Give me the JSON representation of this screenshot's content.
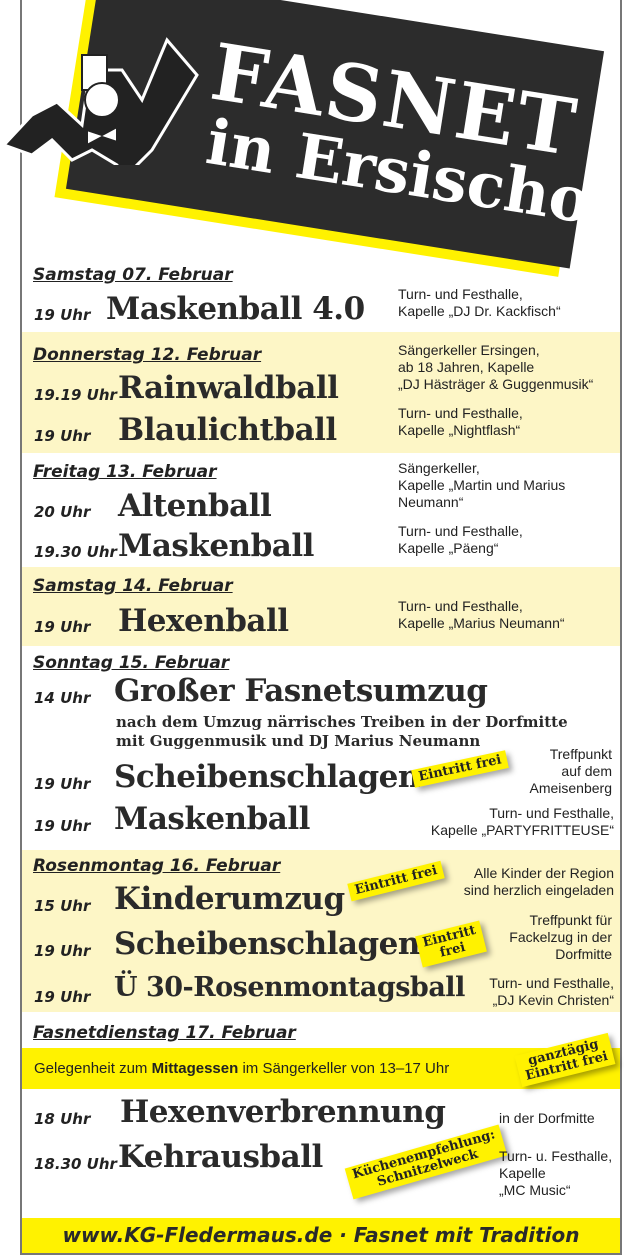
{
  "header": {
    "title_line1": "FASNET",
    "title_line2": "in Ersischo",
    "logo": "bat-mascot-logo"
  },
  "sections": [
    {
      "day": "Samstag 07. Februar",
      "events": [
        {
          "time": "19 Uhr",
          "name": "Maskenball 4.0",
          "info": "Turn- und Festhalle,\nKapelle „DJ Dr. Kackfisch“"
        }
      ]
    },
    {
      "day": "Donnerstag 12. Februar",
      "events": [
        {
          "time": "19.19 Uhr",
          "name": "Rainwaldball",
          "info": "Sängerkeller Ersingen,\nab 18 Jahren, Kapelle\n„DJ Hästräger & Guggenmusik“"
        },
        {
          "time": "19 Uhr",
          "name": "Blaulichtball",
          "info": "Turn- und Festhalle,\nKapelle „Nightflash“"
        }
      ]
    },
    {
      "day": "Freitag 13. Februar",
      "events": [
        {
          "time": "20 Uhr",
          "name": "Altenball",
          "info": "Sängerkeller,\nKapelle „Martin und Marius\nNeumann“"
        },
        {
          "time": "19.30 Uhr",
          "name": "Maskenball",
          "info": "Turn- und Festhalle,\nKapelle „Päeng“"
        }
      ]
    },
    {
      "day": "Samstag 14. Februar",
      "events": [
        {
          "time": "19 Uhr",
          "name": "Hexenball",
          "info": "Turn- und Festhalle,\nKapelle „Marius Neumann“"
        }
      ]
    },
    {
      "day": "Sonntag 15. Februar",
      "events": [
        {
          "time": "14 Uhr",
          "name": "Großer Fasnetsumzug",
          "sub": "nach dem Umzug närrisches Treiben in der Dorfmitte\nmit Guggenmusik und DJ Marius Neumann"
        },
        {
          "time": "19 Uhr",
          "name": "Scheibenschlagen",
          "stamp": "Eintritt frei",
          "info": "Treffpunkt\nauf dem\nAmeisenberg"
        },
        {
          "time": "19 Uhr",
          "name": "Maskenball",
          "info": "Turn- und Festhalle,\nKapelle „PARTYFRITTEUSE“"
        }
      ]
    },
    {
      "day": "Rosenmontag 16. Februar",
      "events": [
        {
          "time": "15 Uhr",
          "name": "Kinderumzug",
          "stamp": "Eintritt frei",
          "info": "Alle Kinder der Region\nsind herzlich eingeladen"
        },
        {
          "time": "19 Uhr",
          "name": "Scheibenschlagen",
          "stamp": "Eintritt\nfrei",
          "info": "Treffpunkt für\nFackelzug in der\nDorfmitte"
        },
        {
          "time": "19 Uhr",
          "name": "Ü 30-Rosenmontagsball",
          "info": "Turn- und Festhalle,\n„DJ Kevin Christen“"
        }
      ]
    },
    {
      "day": "Fasnetdienstag 17. Februar",
      "lunch": {
        "pre": "Gelegenheit zum ",
        "bold": "Mittagessen",
        "post": " im Sängerkeller von 13–17 Uhr",
        "stamp": "ganztägig\nEintritt frei"
      },
      "events": [
        {
          "time": "18 Uhr",
          "name": "Hexenverbrennung",
          "info": "in der Dorfmitte"
        },
        {
          "time": "18.30 Uhr",
          "name": "Kehrausball",
          "stamp": "Küchenempfehlung:\nSchnitzelweck",
          "info": "Turn- u. Festhalle,\nKapelle\n„MC Music“"
        }
      ]
    }
  ],
  "footer": "www.KG-Fledermaus.de · Fasnet mit Tradition",
  "colors": {
    "yellow": "#fff200",
    "pale_yellow": "#fdf6c6",
    "dark": "#2c2c2c"
  }
}
